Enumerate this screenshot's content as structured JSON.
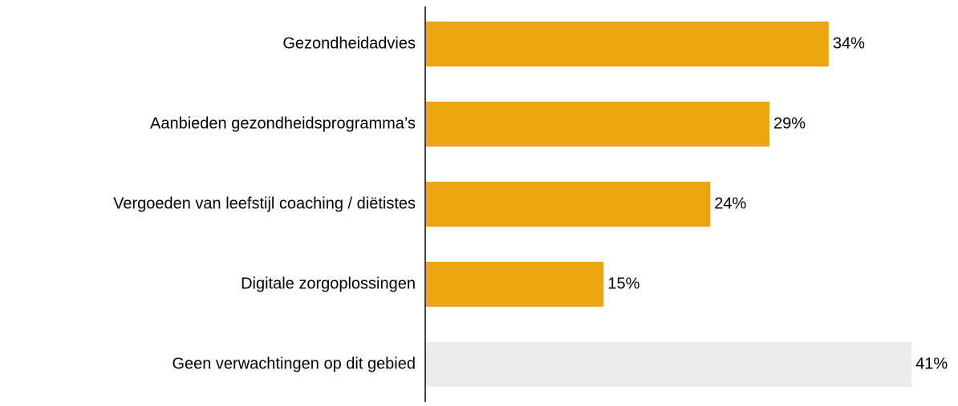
{
  "chart_data": {
    "type": "hbar",
    "categories": [
      "Gezondheidadvies",
      "Aanbieden gezondheidsprogramma’s",
      "Vergoeden van leefstijl coaching / diëtistes",
      "Digitale zorgoplossingen",
      "Geen verwachtingen op dit gebied"
    ],
    "values": [
      34,
      29,
      24,
      15,
      41
    ],
    "value_labels": [
      "34%",
      "29%",
      "24%",
      "15%",
      "41%"
    ],
    "colors": [
      "#eaa50f",
      "#eaa50f",
      "#eaa50f",
      "#eaa50f",
      "#ebebeb"
    ]
  }
}
